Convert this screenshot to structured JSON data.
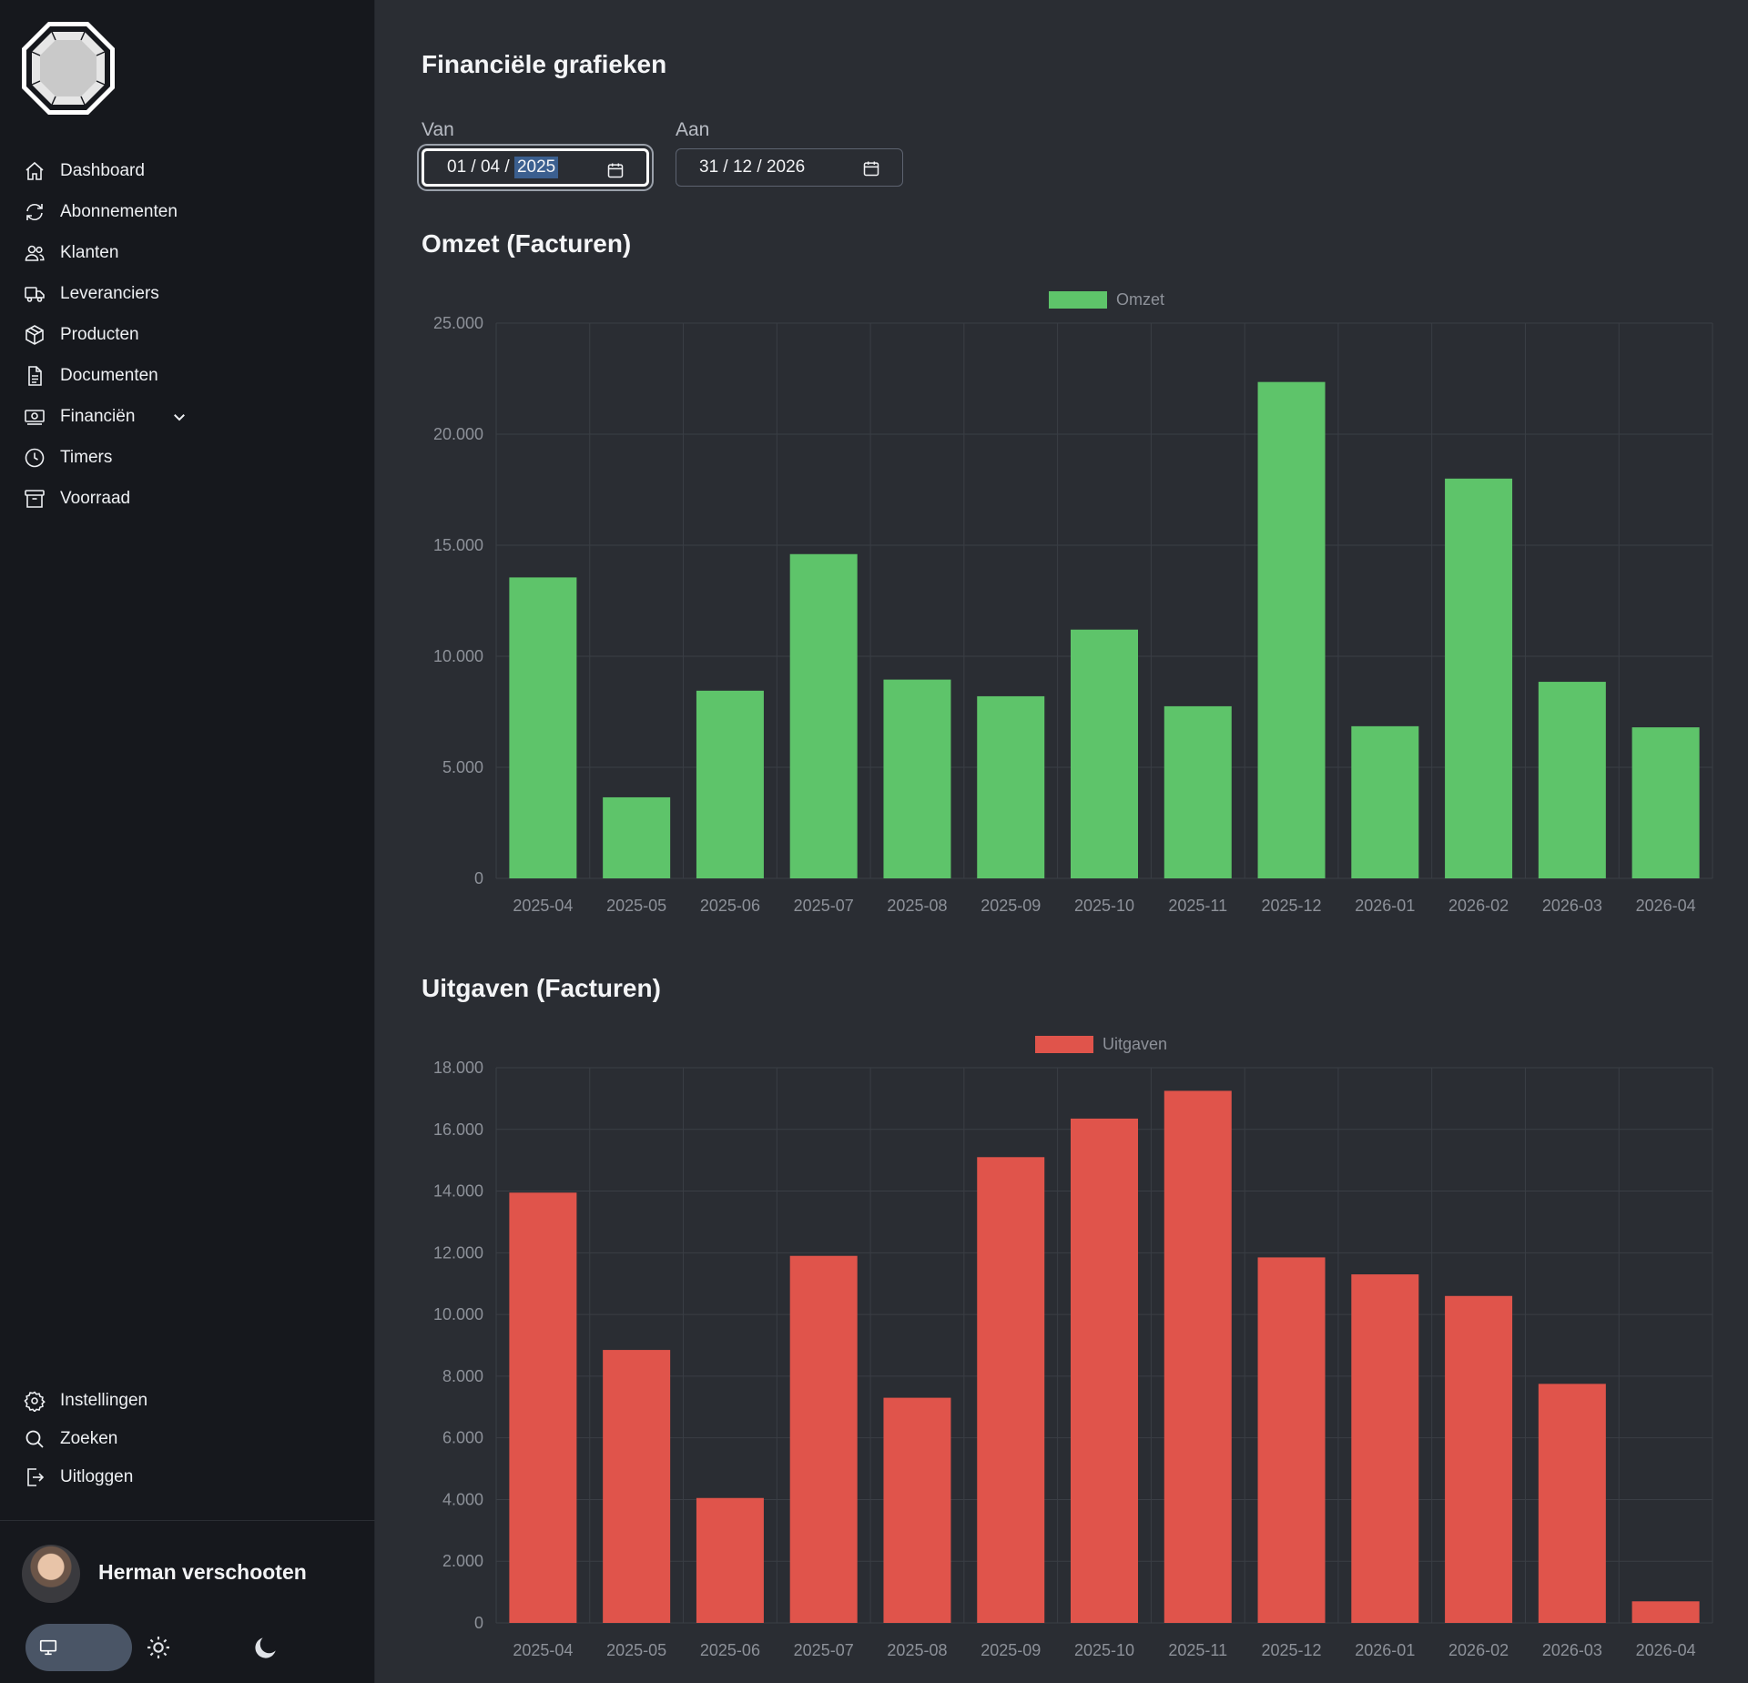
{
  "sidebar": {
    "nav_items": [
      {
        "label": "Dashboard",
        "icon": "home-icon"
      },
      {
        "label": "Abonnementen",
        "icon": "refresh-icon"
      },
      {
        "label": "Klanten",
        "icon": "users-icon"
      },
      {
        "label": "Leveranciers",
        "icon": "truck-icon"
      },
      {
        "label": "Producten",
        "icon": "box-icon"
      },
      {
        "label": "Documenten",
        "icon": "document-icon"
      },
      {
        "label": "Financiën",
        "icon": "money-icon"
      },
      {
        "label": "Timers",
        "icon": "clock-icon"
      },
      {
        "label": "Voorraad",
        "icon": "archive-icon"
      }
    ],
    "bottom_items": [
      {
        "label": "Instellingen",
        "icon": "gear-icon"
      },
      {
        "label": "Zoeken",
        "icon": "search-icon"
      },
      {
        "label": "Uitloggen",
        "icon": "logout-icon"
      }
    ],
    "user": {
      "name": "Herman verschooten"
    }
  },
  "main": {
    "title": "Financiële grafieken",
    "from": {
      "label": "Van",
      "day_month": "01 / 04 / ",
      "year": "2025"
    },
    "to": {
      "label": "Aan",
      "value": "31 / 12 / 2026"
    }
  },
  "colors": {
    "revenue": "#5ec46a",
    "expenses": "#e0544b",
    "grid": "#3a3e45",
    "tick": "#8d9199"
  },
  "chart_data": [
    {
      "type": "bar",
      "title": "Omzet (Facturen)",
      "categories": [
        "2025-04",
        "2025-05",
        "2025-06",
        "2025-07",
        "2025-08",
        "2025-09",
        "2025-10",
        "2025-11",
        "2025-12",
        "2026-01",
        "2026-02",
        "2026-03",
        "2026-04"
      ],
      "series": [
        {
          "name": "Omzet",
          "values": [
            13550,
            3650,
            8450,
            14600,
            8950,
            8200,
            11200,
            7750,
            22350,
            6850,
            18000,
            8850,
            6800
          ]
        }
      ],
      "yticks": [
        "0",
        "5.000",
        "10.000",
        "15.000",
        "20.000",
        "25.000"
      ],
      "ylim": [
        0,
        25000
      ],
      "legend": "top-center",
      "grid": true
    },
    {
      "type": "bar",
      "title": "Uitgaven (Facturen)",
      "categories": [
        "2025-04",
        "2025-05",
        "2025-06",
        "2025-07",
        "2025-08",
        "2025-09",
        "2025-10",
        "2025-11",
        "2025-12",
        "2026-01",
        "2026-02",
        "2026-03",
        "2026-04"
      ],
      "series": [
        {
          "name": "Uitgaven",
          "values": [
            13950,
            8850,
            4050,
            11900,
            7300,
            15100,
            16350,
            17250,
            11850,
            11300,
            10600,
            7750,
            700
          ]
        }
      ],
      "yticks": [
        "0",
        "2.000",
        "4.000",
        "6.000",
        "8.000",
        "10.000",
        "12.000",
        "14.000",
        "16.000",
        "18.000"
      ],
      "ylim": [
        0,
        18000
      ],
      "legend": "top-center",
      "grid": true
    }
  ]
}
